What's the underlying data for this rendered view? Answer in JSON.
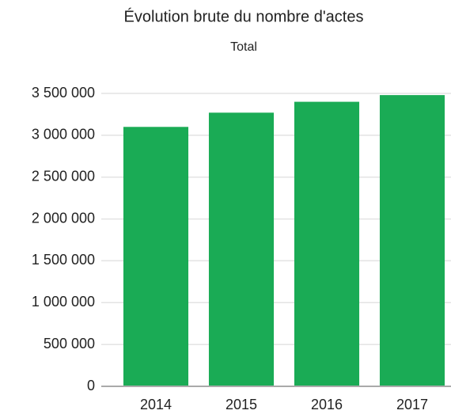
{
  "chart_data": {
    "type": "bar",
    "title": "Évolution brute du nombre d'actes",
    "subtitle": "Total",
    "categories": [
      "2014",
      "2015",
      "2016",
      "2017"
    ],
    "values": [
      3100000,
      3270000,
      3400000,
      3480000
    ],
    "color": "#1aab55",
    "ylim": [
      0,
      3500000
    ],
    "yticks": [
      0,
      {
        "value": 500000,
        "label": "500 000"
      },
      {
        "value": 1000000,
        "label": "1 000 000"
      },
      {
        "value": 1500000,
        "label": "1 500 000"
      },
      {
        "value": 2000000,
        "label": "2 000 000"
      },
      {
        "value": 2500000,
        "label": "2 500 000"
      },
      {
        "value": 3000000,
        "label": "3 000 000"
      },
      {
        "value": 3500000,
        "label": "3 500 000"
      }
    ],
    "grid": true
  }
}
